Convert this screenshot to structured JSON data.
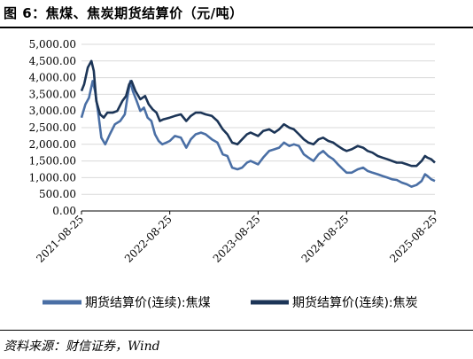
{
  "title": "图 6：焦煤、焦炭期货结算价（元/吨）",
  "source": "资料来源：财信证券，Wind",
  "chart_data": {
    "type": "line",
    "title": "",
    "xlabel": "",
    "ylabel": "",
    "ylim": [
      0,
      5000
    ],
    "y_ticks": [
      "5,000.00",
      "4,500.00",
      "4,000.00",
      "3,500.00",
      "3,000.00",
      "2,500.00",
      "2,000.00",
      "1,500.00",
      "1,000.00",
      "500.00",
      "0.00"
    ],
    "x_ticks": [
      "2021-08-25",
      "2022-08-25",
      "2023-08-25",
      "2024-08-25",
      "2025-08-25"
    ],
    "x_range": [
      "2021-08-25",
      "2025-08-25"
    ],
    "grid": "horizontal",
    "legend": "bottom",
    "colors": {
      "coking_coal": "#4a6fa5",
      "coke": "#1c3557"
    },
    "series": [
      {
        "name": "期货结算价(连续):焦煤",
        "color": "#4a6fa5",
        "points": [
          [
            "2021-08-25",
            2800
          ],
          [
            "2021-09-10",
            3200
          ],
          [
            "2021-09-25",
            3400
          ],
          [
            "2021-10-10",
            3900
          ],
          [
            "2021-10-20",
            3600
          ],
          [
            "2021-11-01",
            3000
          ],
          [
            "2021-11-15",
            2200
          ],
          [
            "2021-12-01",
            2000
          ],
          [
            "2021-12-20",
            2300
          ],
          [
            "2022-01-10",
            2600
          ],
          [
            "2022-02-01",
            2700
          ],
          [
            "2022-02-20",
            2900
          ],
          [
            "2022-03-05",
            3500
          ],
          [
            "2022-03-15",
            3900
          ],
          [
            "2022-03-25",
            3600
          ],
          [
            "2022-04-10",
            3300
          ],
          [
            "2022-04-25",
            3000
          ],
          [
            "2022-05-10",
            3100
          ],
          [
            "2022-05-25",
            2800
          ],
          [
            "2022-06-10",
            2700
          ],
          [
            "2022-06-25",
            2300
          ],
          [
            "2022-07-10",
            2100
          ],
          [
            "2022-07-25",
            2000
          ],
          [
            "2022-08-10",
            2050
          ],
          [
            "2022-08-25",
            2100
          ],
          [
            "2022-09-15",
            2250
          ],
          [
            "2022-10-10",
            2200
          ],
          [
            "2022-11-01",
            1900
          ],
          [
            "2022-11-20",
            2150
          ],
          [
            "2022-12-10",
            2300
          ],
          [
            "2023-01-01",
            2350
          ],
          [
            "2023-01-20",
            2300
          ],
          [
            "2023-02-15",
            2150
          ],
          [
            "2023-03-10",
            2050
          ],
          [
            "2023-04-01",
            1700
          ],
          [
            "2023-04-20",
            1650
          ],
          [
            "2023-05-10",
            1300
          ],
          [
            "2023-06-01",
            1250
          ],
          [
            "2023-06-20",
            1300
          ],
          [
            "2023-07-10",
            1450
          ],
          [
            "2023-07-25",
            1500
          ],
          [
            "2023-08-25",
            1400
          ],
          [
            "2023-09-15",
            1600
          ],
          [
            "2023-10-10",
            1800
          ],
          [
            "2023-11-01",
            1850
          ],
          [
            "2023-11-20",
            1900
          ],
          [
            "2023-12-10",
            2050
          ],
          [
            "2024-01-01",
            1950
          ],
          [
            "2024-01-20",
            2000
          ],
          [
            "2024-02-10",
            1950
          ],
          [
            "2024-03-01",
            1700
          ],
          [
            "2024-03-20",
            1600
          ],
          [
            "2024-04-10",
            1500
          ],
          [
            "2024-05-01",
            1700
          ],
          [
            "2024-05-20",
            1800
          ],
          [
            "2024-06-10",
            1650
          ],
          [
            "2024-07-01",
            1550
          ],
          [
            "2024-07-20",
            1400
          ],
          [
            "2024-08-10",
            1250
          ],
          [
            "2024-08-25",
            1150
          ],
          [
            "2024-09-15",
            1150
          ],
          [
            "2024-10-10",
            1250
          ],
          [
            "2024-11-01",
            1300
          ],
          [
            "2024-11-20",
            1200
          ],
          [
            "2024-12-10",
            1150
          ],
          [
            "2025-01-01",
            1100
          ],
          [
            "2025-01-20",
            1050
          ],
          [
            "2025-02-10",
            1000
          ],
          [
            "2025-03-01",
            950
          ],
          [
            "2025-03-20",
            930
          ],
          [
            "2025-04-10",
            850
          ],
          [
            "2025-05-01",
            800
          ],
          [
            "2025-05-20",
            730
          ],
          [
            "2025-06-10",
            780
          ],
          [
            "2025-07-01",
            900
          ],
          [
            "2025-07-15",
            1100
          ],
          [
            "2025-07-25",
            1050
          ],
          [
            "2025-08-10",
            950
          ],
          [
            "2025-08-25",
            900
          ]
        ]
      },
      {
        "name": "期货结算价(连续):焦炭",
        "color": "#1c3557",
        "points": [
          [
            "2021-08-25",
            3600
          ],
          [
            "2021-09-05",
            3800
          ],
          [
            "2021-09-20",
            4300
          ],
          [
            "2021-10-05",
            4500
          ],
          [
            "2021-10-15",
            4200
          ],
          [
            "2021-10-25",
            3300
          ],
          [
            "2021-11-10",
            2900
          ],
          [
            "2021-11-25",
            2800
          ],
          [
            "2021-12-10",
            2950
          ],
          [
            "2022-01-01",
            2950
          ],
          [
            "2022-01-20",
            3000
          ],
          [
            "2022-02-10",
            3300
          ],
          [
            "2022-02-25",
            3450
          ],
          [
            "2022-03-10",
            3800
          ],
          [
            "2022-03-20",
            3900
          ],
          [
            "2022-04-05",
            3600
          ],
          [
            "2022-04-25",
            3350
          ],
          [
            "2022-05-15",
            3450
          ],
          [
            "2022-05-30",
            3200
          ],
          [
            "2022-06-15",
            3050
          ],
          [
            "2022-07-01",
            2950
          ],
          [
            "2022-07-15",
            2700
          ],
          [
            "2022-07-30",
            2750
          ],
          [
            "2022-08-25",
            2800
          ],
          [
            "2022-09-15",
            2850
          ],
          [
            "2022-10-10",
            2900
          ],
          [
            "2022-11-01",
            2700
          ],
          [
            "2022-11-20",
            2850
          ],
          [
            "2022-12-10",
            2950
          ],
          [
            "2023-01-01",
            2950
          ],
          [
            "2023-01-20",
            2900
          ],
          [
            "2023-02-15",
            2850
          ],
          [
            "2023-03-10",
            2700
          ],
          [
            "2023-04-01",
            2450
          ],
          [
            "2023-04-20",
            2300
          ],
          [
            "2023-05-10",
            2050
          ],
          [
            "2023-06-01",
            2000
          ],
          [
            "2023-06-20",
            2150
          ],
          [
            "2023-07-10",
            2300
          ],
          [
            "2023-07-25",
            2350
          ],
          [
            "2023-08-25",
            2250
          ],
          [
            "2023-09-15",
            2400
          ],
          [
            "2023-10-10",
            2450
          ],
          [
            "2023-11-01",
            2350
          ],
          [
            "2023-11-20",
            2450
          ],
          [
            "2023-12-10",
            2600
          ],
          [
            "2024-01-01",
            2500
          ],
          [
            "2024-01-20",
            2450
          ],
          [
            "2024-02-10",
            2300
          ],
          [
            "2024-03-01",
            2150
          ],
          [
            "2024-03-20",
            2050
          ],
          [
            "2024-04-10",
            2000
          ],
          [
            "2024-05-01",
            2150
          ],
          [
            "2024-05-20",
            2200
          ],
          [
            "2024-06-10",
            2100
          ],
          [
            "2024-07-01",
            2050
          ],
          [
            "2024-07-20",
            1950
          ],
          [
            "2024-08-10",
            1850
          ],
          [
            "2024-08-25",
            1800
          ],
          [
            "2024-09-15",
            1850
          ],
          [
            "2024-10-10",
            1950
          ],
          [
            "2024-11-01",
            1900
          ],
          [
            "2024-11-20",
            1800
          ],
          [
            "2024-12-10",
            1750
          ],
          [
            "2025-01-01",
            1650
          ],
          [
            "2025-01-20",
            1600
          ],
          [
            "2025-02-10",
            1550
          ],
          [
            "2025-03-01",
            1500
          ],
          [
            "2025-03-20",
            1450
          ],
          [
            "2025-04-10",
            1450
          ],
          [
            "2025-05-01",
            1400
          ],
          [
            "2025-05-20",
            1350
          ],
          [
            "2025-06-10",
            1350
          ],
          [
            "2025-07-01",
            1500
          ],
          [
            "2025-07-15",
            1650
          ],
          [
            "2025-07-25",
            1600
          ],
          [
            "2025-08-10",
            1550
          ],
          [
            "2025-08-25",
            1450
          ]
        ]
      }
    ]
  }
}
